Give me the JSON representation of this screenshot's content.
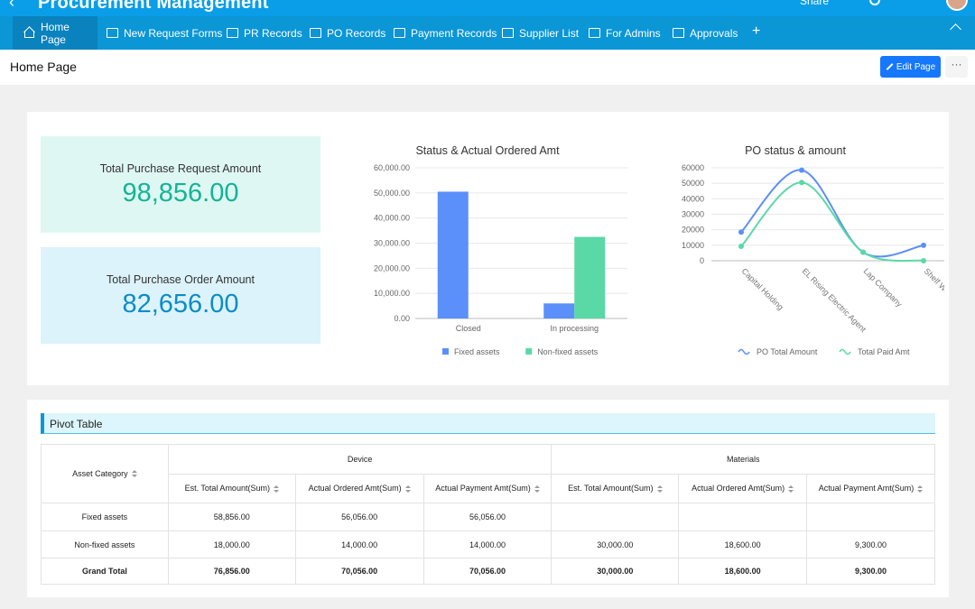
{
  "app": {
    "title": "Procurement Management",
    "share_label": "Share"
  },
  "nav": {
    "tabs": [
      {
        "label": "Home Page",
        "icon": "home-icon"
      },
      {
        "label": "New Request Forms",
        "icon": "form-icon"
      },
      {
        "label": "PR Records",
        "icon": "records-icon"
      },
      {
        "label": "PO Records",
        "icon": "records-icon"
      },
      {
        "label": "Payment Records",
        "icon": "card-icon"
      },
      {
        "label": "Supplier List",
        "icon": "list-icon"
      },
      {
        "label": "For Admins",
        "icon": "folder-icon"
      },
      {
        "label": "Approvals",
        "icon": "approval-icon"
      }
    ],
    "add_label": "+"
  },
  "page": {
    "title": "Home Page",
    "edit_label": "Edit Page",
    "more_label": "···"
  },
  "kpis": [
    {
      "label": "Total Purchase Request Amount",
      "value": "98,856.00",
      "color": "#13b494"
    },
    {
      "label": "Total Purchase Order Amount",
      "value": "82,656.00",
      "color": "#0c8cc7"
    }
  ],
  "chart_data": [
    {
      "type": "bar",
      "title": "Status & Actual Ordered Amt",
      "categories": [
        "Closed",
        "In processing"
      ],
      "series": [
        {
          "name": "Fixed assets",
          "values": [
            50500,
            6000
          ],
          "color": "#5b8ff9"
        },
        {
          "name": "Non-fixed assets",
          "values": [
            0,
            32500
          ],
          "color": "#5ad8a6"
        }
      ],
      "yticks": [
        "0.00",
        "10,000.00",
        "20,000.00",
        "30,000.00",
        "40,000.00",
        "50,000.00",
        "60,000.00"
      ],
      "ylim": [
        0,
        60000
      ],
      "grid": true,
      "legend": "bottom"
    },
    {
      "type": "line",
      "title": "PO status & amount",
      "categories": [
        "Capital Holding",
        "EL Rising Electric Agent",
        "Lap Company",
        "Shelf Warehouse"
      ],
      "series": [
        {
          "name": "PO Total Amount",
          "values": [
            18500,
            58500,
            5500,
            10000
          ],
          "color": "#5b8ff9"
        },
        {
          "name": "Total Paid Amt",
          "values": [
            9300,
            50500,
            5500,
            0
          ],
          "color": "#5ad8a6"
        }
      ],
      "yticks": [
        "0",
        "10000",
        "20000",
        "30000",
        "40000",
        "50000",
        "60000"
      ],
      "ylim": [
        0,
        60000
      ],
      "grid": true,
      "legend": "bottom"
    }
  ],
  "pivot": {
    "title": "Pivot Table",
    "row_header": "Asset Category",
    "groups": [
      "Device",
      "Materials"
    ],
    "columns": [
      "Est. Total Amount(Sum)",
      "Actual Ordered Amt(Sum)",
      "Actual Payment Amt(Sum)",
      "Est. Total Amount(Sum)",
      "Actual Ordered Amt(Sum)",
      "Actual Payment Amt(Sum)"
    ],
    "rows": [
      {
        "label": "Fixed assets",
        "cells": [
          "58,856.00",
          "56,056.00",
          "56,056.00",
          "",
          "",
          ""
        ]
      },
      {
        "label": "Non-fixed assets",
        "cells": [
          "18,000.00",
          "14,000.00",
          "14,000.00",
          "30,000.00",
          "18,600.00",
          "9,300.00"
        ]
      },
      {
        "label": "Grand Total",
        "cells": [
          "76,856.00",
          "70,056.00",
          "70,056.00",
          "30,000.00",
          "18,600.00",
          "9,300.00"
        ]
      }
    ]
  }
}
